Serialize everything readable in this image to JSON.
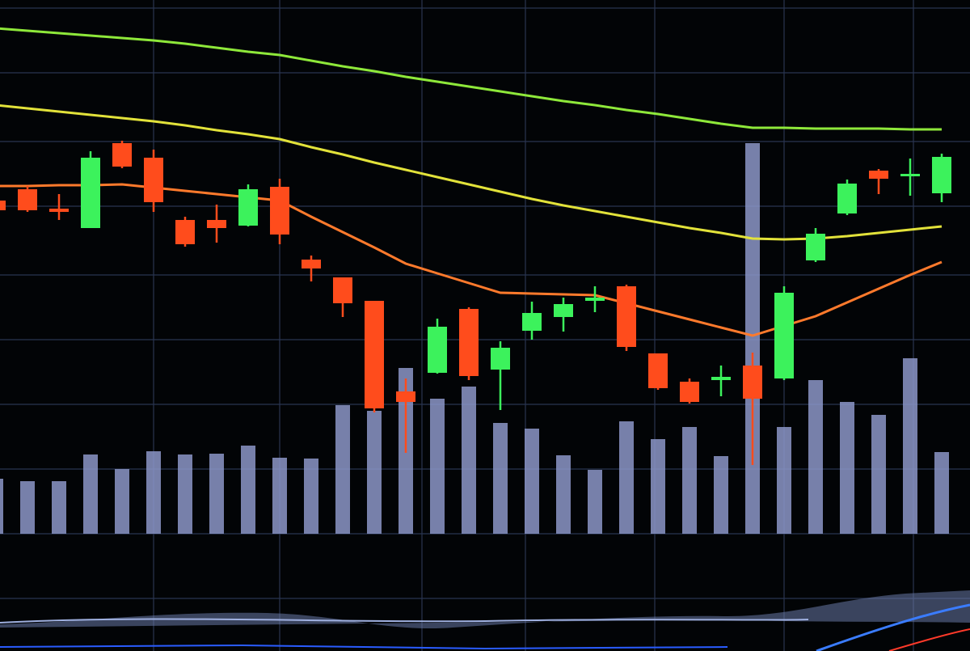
{
  "chart_data": {
    "type": "candlestick",
    "ylim": [
      0,
      805
    ],
    "up_color": "#3cf25c",
    "down_color": "#ff4c1c",
    "open": [
      557,
      571,
      547,
      523,
      628,
      610,
      533,
      533,
      526,
      574,
      484,
      462,
      433,
      321,
      344,
      423,
      348,
      396,
      413,
      433,
      451,
      368,
      333,
      335,
      353,
      337,
      483,
      541,
      594,
      587,
      566
    ],
    "high": [
      560,
      575,
      565,
      618,
      631,
      620,
      537,
      552,
      577,
      584,
      489,
      462,
      433,
      337,
      411,
      425,
      383,
      432,
      437,
      451,
      453,
      368,
      337,
      353,
      369,
      451,
      523,
      583,
      596,
      609,
      615
    ],
    "low": [
      543,
      543,
      533,
      523,
      597,
      543,
      500,
      505,
      525,
      503,
      457,
      413,
      295,
      245,
      343,
      335,
      298,
      385,
      395,
      419,
      371,
      323,
      306,
      315,
      230,
      335,
      481,
      539,
      565,
      563,
      555
    ],
    "close": [
      545,
      545,
      543,
      610,
      599,
      555,
      503,
      523,
      571,
      515,
      473,
      430,
      300,
      308,
      401,
      340,
      375,
      418,
      429,
      437,
      376,
      325,
      308,
      339,
      312,
      443,
      516,
      578,
      584,
      590,
      611
    ],
    "moving_averages": [
      {
        "color": "#8ee83a",
        "values": [
          770,
          767,
          764,
          761,
          758,
          755,
          751,
          746,
          741,
          737,
          730,
          723,
          717,
          710,
          704,
          698,
          692,
          686,
          680,
          675,
          669,
          664,
          658,
          652,
          647,
          647,
          646,
          646,
          646,
          645,
          645
        ]
      },
      {
        "color": "#e2e23a",
        "values": [
          675,
          671,
          667,
          663,
          659,
          655,
          650,
          644,
          639,
          633,
          623,
          614,
          604,
          595,
          586,
          577,
          568,
          559,
          551,
          544,
          537,
          530,
          523,
          517,
          510,
          509,
          510,
          513,
          517,
          521,
          525
        ]
      },
      {
        "color": "#ff7a2c",
        "values": [
          575,
          575,
          576,
          576,
          577,
          573,
          569,
          565,
          561,
          557,
          537,
          518,
          499,
          479,
          467,
          455,
          443,
          442,
          441,
          440,
          430,
          420,
          410,
          400,
          390,
          402,
          414,
          431,
          448,
          465,
          481
        ]
      }
    ],
    "volume": {
      "color": "#8c96c8",
      "ylim": [
        0,
        660
      ],
      "values": [
        68,
        65,
        65,
        98,
        80,
        102,
        98,
        99,
        109,
        94,
        93,
        159,
        152,
        205,
        167,
        182,
        137,
        130,
        97,
        79,
        139,
        117,
        132,
        96,
        483,
        132,
        190,
        163,
        147,
        217,
        101
      ]
    },
    "grid": true
  }
}
